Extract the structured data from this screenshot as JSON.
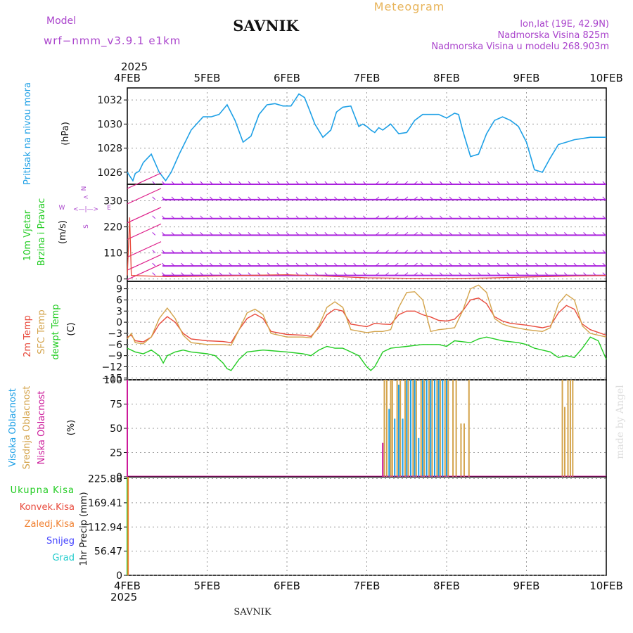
{
  "header": {
    "model_label": "Model",
    "model_name": "wrf−nmm_v3.9.1  e1km",
    "station": "SAVNIK",
    "product": "Meteogram",
    "coords": "lon,lat (19E, 42.9N)",
    "elevation": "Nadmorska Visina 825m",
    "model_elevation": "Nadmorska Visina u modelu 268.903m"
  },
  "footer": {
    "station": "SAVNIK",
    "credit": "made by Angel"
  },
  "time_axis": {
    "year": "2025",
    "ticks": [
      "4FEB",
      "5FEB",
      "6FEB",
      "7FEB",
      "8FEB",
      "9FEB",
      "10FEB"
    ]
  },
  "panels": {
    "pressure": {
      "title": "Pritisak na nivou mora",
      "unit": "(hPa)",
      "ticks": [
        "1026",
        "1028",
        "1030",
        "1032"
      ]
    },
    "wind": {
      "title_a": "10m Vjetar",
      "title_b": "Brzina i Pravac",
      "unit": "(m/s)",
      "ticks": [
        "0",
        "110",
        "220",
        "330"
      ],
      "compass": {
        "n": "N",
        "s": "S",
        "e": "E",
        "w": "W"
      }
    },
    "temp": {
      "labels": [
        "2m Temp",
        "SFC Temp",
        "dewpt Temp"
      ],
      "unit": "(C)",
      "ticks": [
        "−15",
        "−12",
        "−9",
        "−6",
        "−3",
        "0",
        "3",
        "6",
        "9"
      ]
    },
    "cloud": {
      "labels": [
        "Visoka Oblacnost",
        "Srednja Oblacnost",
        "Niska Oblacnost"
      ],
      "unit": "(%)",
      "ticks": [
        "0",
        "25",
        "50",
        "75",
        "100"
      ]
    },
    "precip": {
      "labels": [
        "Ukupna Kisa",
        "Konvek.Kisa",
        "Zaledj.Kisa",
        "Snijeg",
        "Grad"
      ],
      "unit": "1hr Precip (mm)",
      "ticks": [
        "0",
        "56.47",
        "112.94",
        "169.41",
        "225.88"
      ]
    }
  },
  "colors": {
    "pressure": "#1ea0e6",
    "temp2m": "#e84a3c",
    "sfc": "#d4a44c",
    "dewpt": "#22cc22",
    "high_cloud": "#1ea0e6",
    "mid_cloud": "#d4a44c",
    "low_cloud": "#cc1a9a",
    "wind_barb": "#aa22dd",
    "wind_arrow": "#dd1a88",
    "wind_speed": "#e84a3c",
    "total": "#22cc22",
    "conv": "#e84a3c",
    "frz": "#f08030",
    "snow": "#4444ff",
    "hail": "#22cccc",
    "header_purple": "#aa44cc",
    "header_orange": "#e8b45a"
  },
  "chart_data": [
    {
      "type": "line",
      "title": "Pritisak na nivou mora",
      "ylabel": "(hPa)",
      "xlim": [
        0,
        6
      ],
      "ylim": [
        1025,
        1033
      ],
      "x_unit": "days after 4FEB 2025 00:00",
      "series": [
        {
          "name": "Pritisak na nivou mora",
          "x": [
            0,
            0.07,
            0.1,
            0.15,
            0.2,
            0.3,
            0.4,
            0.48,
            0.55,
            0.65,
            0.8,
            0.95,
            1.05,
            1.15,
            1.25,
            1.35,
            1.45,
            1.55,
            1.65,
            1.75,
            1.85,
            1.95,
            2.05,
            2.15,
            2.22,
            2.28,
            2.35,
            2.45,
            2.55,
            2.62,
            2.7,
            2.8,
            2.9,
            2.95,
            3.0,
            3.05,
            3.1,
            3.15,
            3.2,
            3.3,
            3.4,
            3.5,
            3.6,
            3.7,
            3.8,
            3.9,
            4.0,
            4.1,
            4.15,
            4.2,
            4.3,
            4.4,
            4.5,
            4.6,
            4.7,
            4.8,
            4.9,
            5.0,
            5.1,
            5.2,
            5.3,
            5.4,
            5.5,
            5.6,
            5.7,
            5.8,
            5.9,
            6.0
          ],
          "y": [
            1026,
            1025.3,
            1025.9,
            1026.1,
            1026.8,
            1027.5,
            1026,
            1025.3,
            1026,
            1027.5,
            1029.5,
            1030.6,
            1030.6,
            1030.8,
            1031.6,
            1030.3,
            1028.5,
            1029,
            1030.8,
            1031.6,
            1031.7,
            1031.5,
            1031.5,
            1032.5,
            1032.2,
            1031.2,
            1030,
            1028.9,
            1029.5,
            1031,
            1031.4,
            1031.5,
            1029.8,
            1030,
            1029.8,
            1029.5,
            1029.3,
            1029.7,
            1029.5,
            1030,
            1029.2,
            1029.3,
            1030.3,
            1030.8,
            1030.8,
            1030.8,
            1030.5,
            1030.9,
            1030.8,
            1029.5,
            1027.3,
            1027.5,
            1029.2,
            1030.3,
            1030.6,
            1030.3,
            1029.8,
            1028.5,
            1026.2,
            1026,
            1027.2,
            1028.3,
            1028.5,
            1028.7,
            1028.8,
            1028.9,
            1028.9,
            1028.9
          ]
        }
      ]
    },
    {
      "type": "line",
      "title": "10m Vjetar Brzina i Pravac",
      "ylabel": "(m/s)",
      "xlim": [
        0,
        6
      ],
      "ylim": [
        -10,
        400
      ],
      "barb_levels": [
        15,
        55,
        110,
        185,
        255,
        335,
        400
      ],
      "series": [
        {
          "name": "10m Vjetar",
          "x": [
            0,
            0.03,
            0.05,
            0.5,
            1,
            1.5,
            2,
            2.5,
            3,
            3.5,
            4,
            4.5,
            5,
            5.5,
            6
          ],
          "y": [
            15,
            260,
            15,
            10,
            12,
            15,
            18,
            12,
            5,
            3,
            2,
            4,
            8,
            12,
            15
          ]
        }
      ]
    },
    {
      "type": "line",
      "ylabel": "(C)",
      "xlim": [
        0,
        6
      ],
      "ylim": [
        -15.5,
        11
      ],
      "series": [
        {
          "name": "2m Temp",
          "x": [
            0,
            0.05,
            0.1,
            0.2,
            0.3,
            0.4,
            0.5,
            0.6,
            0.7,
            0.8,
            1.0,
            1.2,
            1.3,
            1.4,
            1.5,
            1.6,
            1.7,
            1.8,
            2.0,
            2.2,
            2.3,
            2.4,
            2.5,
            2.6,
            2.7,
            2.8,
            3.0,
            3.1,
            3.2,
            3.3,
            3.4,
            3.5,
            3.6,
            3.7,
            3.8,
            3.9,
            4.0,
            4.1,
            4.2,
            4.3,
            4.4,
            4.5,
            4.6,
            4.7,
            4.8,
            5.0,
            5.2,
            5.3,
            5.4,
            5.5,
            5.6,
            5.7,
            5.8,
            6.0
          ],
          "y": [
            -4,
            -3.5,
            -5,
            -5.3,
            -4,
            -0.5,
            1.5,
            0,
            -3,
            -4.5,
            -5,
            -5.2,
            -5.5,
            -2,
            1,
            2.2,
            1,
            -2.5,
            -3.3,
            -3.5,
            -3.8,
            -1.5,
            2,
            3.5,
            3,
            -0.5,
            -1.2,
            -0.3,
            -0.5,
            -0.6,
            2,
            3,
            3,
            2,
            1.4,
            0.5,
            0.3,
            0.8,
            3,
            6,
            6.5,
            5,
            1.5,
            0.3,
            -0.3,
            -0.8,
            -1.5,
            -1,
            2.5,
            4.5,
            3.5,
            -0.5,
            -2,
            -3.5
          ]
        },
        {
          "name": "SFC Temp",
          "x": [
            0,
            0.05,
            0.1,
            0.2,
            0.3,
            0.4,
            0.5,
            0.6,
            0.7,
            0.8,
            1.0,
            1.2,
            1.3,
            1.4,
            1.5,
            1.6,
            1.7,
            1.8,
            2.0,
            2.2,
            2.3,
            2.4,
            2.5,
            2.6,
            2.7,
            2.8,
            3.0,
            3.1,
            3.2,
            3.3,
            3.4,
            3.5,
            3.6,
            3.7,
            3.8,
            3.9,
            4.0,
            4.1,
            4.2,
            4.3,
            4.4,
            4.5,
            4.6,
            4.7,
            4.8,
            5.0,
            5.2,
            5.3,
            5.4,
            5.5,
            5.6,
            5.7,
            5.8,
            6.0
          ],
          "y": [
            -4.5,
            -3,
            -5.5,
            -5.8,
            -4,
            1,
            3.8,
            1,
            -3.5,
            -5.5,
            -6,
            -6,
            -6.2,
            -2,
            2.5,
            3.5,
            2,
            -3,
            -4,
            -4,
            -4.2,
            -1,
            4,
            5.5,
            4,
            -2,
            -2.8,
            -2.5,
            -2.5,
            -2,
            4,
            8,
            8.2,
            6,
            -2.5,
            -2,
            -1.8,
            -1.5,
            3,
            9,
            10,
            8,
            1,
            -0.5,
            -1.2,
            -2,
            -2.5,
            -1.5,
            5,
            7.5,
            6,
            -1,
            -3,
            -4
          ]
        },
        {
          "name": "dewpt Temp",
          "x": [
            0,
            0.1,
            0.2,
            0.3,
            0.4,
            0.45,
            0.5,
            0.6,
            0.7,
            0.8,
            1.0,
            1.1,
            1.2,
            1.25,
            1.3,
            1.4,
            1.5,
            1.7,
            2.0,
            2.2,
            2.3,
            2.4,
            2.5,
            2.6,
            2.7,
            2.8,
            2.9,
            3.0,
            3.05,
            3.1,
            3.2,
            3.3,
            3.5,
            3.7,
            3.9,
            4.0,
            4.1,
            4.3,
            4.4,
            4.5,
            4.7,
            4.9,
            5.0,
            5.1,
            5.3,
            5.4,
            5.5,
            5.6,
            5.7,
            5.8,
            5.9,
            6.0
          ],
          "y": [
            -7,
            -8,
            -8.5,
            -7.5,
            -9,
            -11,
            -9,
            -8,
            -7.5,
            -8,
            -8.5,
            -9,
            -11,
            -12.5,
            -13,
            -10,
            -8,
            -7.5,
            -8,
            -8.5,
            -9,
            -7.5,
            -6.5,
            -7,
            -7,
            -8,
            -9,
            -12,
            -13,
            -12,
            -8,
            -7,
            -6.5,
            -6,
            -6,
            -6.5,
            -5,
            -5.5,
            -4.5,
            -4,
            -5,
            -5.5,
            -6,
            -7,
            -8,
            -9.5,
            -9,
            -9.5,
            -7,
            -4,
            -5,
            -10
          ]
        }
      ]
    },
    {
      "type": "bar",
      "ylabel": "(%)",
      "xlim": [
        0,
        6
      ],
      "ylim": [
        0,
        100
      ],
      "series": [
        {
          "name": "Visoka Oblacnost",
          "x": [
            0,
            3.28,
            3.35,
            3.4,
            3.45,
            3.5,
            3.55,
            3.6,
            3.65,
            3.7,
            3.75,
            3.8,
            3.85,
            3.9,
            3.95,
            4.0
          ],
          "y": [
            100,
            70,
            60,
            95,
            60,
            100,
            100,
            100,
            40,
            100,
            100,
            100,
            100,
            100,
            100,
            100
          ]
        },
        {
          "name": "Srednja Oblacnost",
          "x": [
            0,
            3.22,
            3.25,
            3.3,
            3.32,
            3.38,
            3.42,
            3.48,
            3.52,
            3.58,
            3.62,
            3.68,
            3.72,
            3.78,
            3.82,
            3.88,
            3.92,
            3.98,
            4.02,
            4.08,
            4.12,
            4.18,
            4.22,
            4.28,
            5.45,
            5.48,
            5.52,
            5.55,
            5.58
          ],
          "y": [
            100,
            100,
            100,
            100,
            100,
            100,
            100,
            100,
            100,
            100,
            100,
            100,
            100,
            100,
            100,
            100,
            100,
            100,
            100,
            100,
            100,
            55,
            55,
            100,
            100,
            72,
            100,
            100,
            100
          ]
        },
        {
          "name": "Niska Oblacnost",
          "x": [
            0,
            3.2
          ],
          "y": [
            100,
            35
          ]
        }
      ]
    },
    {
      "type": "bar",
      "ylabel": "1hr Precip (mm)",
      "xlim": [
        0,
        6
      ],
      "ylim": [
        0,
        230
      ],
      "series": [
        {
          "name": "Ukupna Kisa",
          "x": [
            0
          ],
          "y": [
            230
          ]
        },
        {
          "name": "Konvek.Kisa",
          "x": [],
          "y": []
        },
        {
          "name": "Zaledj.Kisa",
          "x": [
            0.01
          ],
          "y": [
            230
          ]
        },
        {
          "name": "Snijeg",
          "x": [],
          "y": []
        },
        {
          "name": "Grad",
          "x": [],
          "y": []
        }
      ]
    }
  ]
}
